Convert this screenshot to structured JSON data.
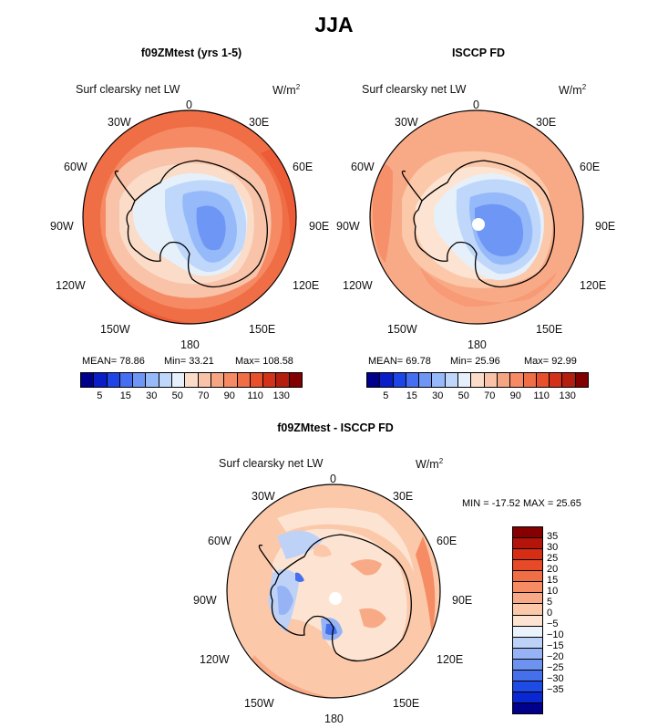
{
  "title": "JJA",
  "panels": [
    {
      "id": "model",
      "title": "f09ZMtest (yrs 1-5)",
      "variable": "Surf clearsky net LW",
      "units_base": "W/m",
      "units_exp": "2",
      "stats": {
        "mean_label": "MEAN=",
        "mean": "78.86",
        "min_label": "Min=",
        "min": "33.21",
        "max_label": "Max=",
        "max": "108.58"
      }
    },
    {
      "id": "obs",
      "title": "ISCCP FD",
      "variable": "Surf clearsky net LW",
      "units_base": "W/m",
      "units_exp": "2",
      "stats": {
        "mean_label": "MEAN=",
        "mean": "69.78",
        "min_label": "Min=",
        "min": "25.96",
        "max_label": "Max=",
        "max": "92.99"
      }
    },
    {
      "id": "diff",
      "title": "f09ZMtest - ISCCP FD",
      "variable": "Surf clearsky net LW",
      "units_base": "W/m",
      "units_exp": "2",
      "minmax_text": "MIN = -17.52 MAX =  25.65"
    }
  ],
  "longitude_labels": {
    "lon0": "0",
    "lon30e": "30E",
    "lon60e": "60E",
    "lon90e": "90E",
    "lon120e": "120E",
    "lon150e": "150E",
    "lon180": "180",
    "lon150w": "150W",
    "lon120w": "120W",
    "lon90w": "90W",
    "lon60w": "60W",
    "lon30w": "30W"
  },
  "colorbar_top": {
    "labels": [
      "5",
      "15",
      "30",
      "50",
      "70",
      "90",
      "110",
      "130"
    ],
    "colors": [
      "#00008c",
      "#0a1ec8",
      "#1e46e6",
      "#466ef0",
      "#6e96f5",
      "#96b9fa",
      "#bed7fa",
      "#e6f0fa",
      "#fadcc8",
      "#f8c3a8",
      "#f5a582",
      "#f58a64",
      "#f06e46",
      "#e8502d",
      "#d23219",
      "#b41e0f",
      "#820000"
    ]
  },
  "colorbar_diff": {
    "labels": [
      "35",
      "30",
      "25",
      "20",
      "15",
      "10",
      "5",
      "0",
      "−5",
      "−10",
      "−15",
      "−20",
      "−25",
      "−30",
      "−35"
    ],
    "colors": [
      "#870000",
      "#b4140a",
      "#d72d14",
      "#e64a28",
      "#f06e46",
      "#f58c64",
      "#f8aa87",
      "#fbc8aa",
      "#fde4d2",
      "#eaf2fc",
      "#bed2f8",
      "#96b4f5",
      "#6e92f0",
      "#4670eb",
      "#1e4be6",
      "#0a28d2",
      "#00008c"
    ]
  }
}
